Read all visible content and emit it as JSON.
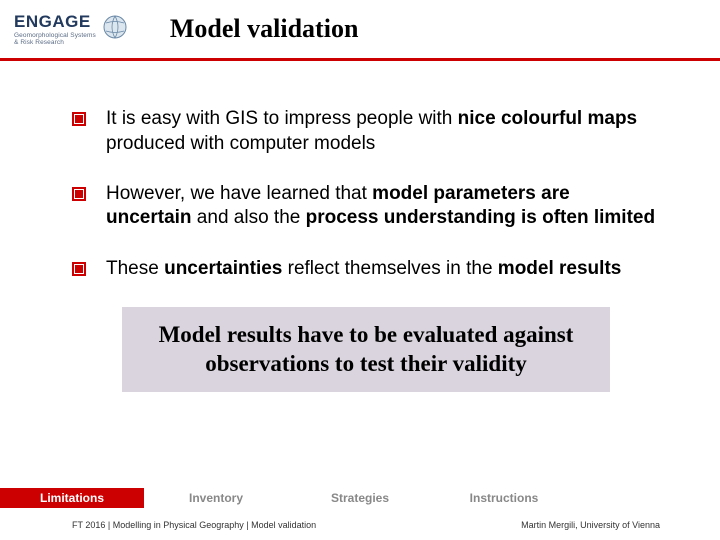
{
  "header": {
    "logo_primary": "ENGAGE",
    "logo_sub_line1": "Geomorphological Systems",
    "logo_sub_line2": "& Risk Research",
    "title": "Model validation",
    "rule_color": "#cc0000"
  },
  "bullets": [
    {
      "segments": [
        {
          "t": "It is easy with GIS to impress people with ",
          "b": false
        },
        {
          "t": "nice colourful maps",
          "b": true
        },
        {
          "t": " produced with computer models",
          "b": false
        }
      ]
    },
    {
      "segments": [
        {
          "t": "However, we have learned that ",
          "b": false
        },
        {
          "t": "model parameters are uncertain",
          "b": true
        },
        {
          "t": " and also the ",
          "b": false
        },
        {
          "t": "process understanding is often limited",
          "b": true
        }
      ]
    },
    {
      "segments": [
        {
          "t": "These ",
          "b": false
        },
        {
          "t": "uncertainties",
          "b": true
        },
        {
          "t": " reflect themselves in the ",
          "b": false
        },
        {
          "t": "model results",
          "b": true
        }
      ]
    }
  ],
  "highlight": "Model results have to be evaluated against observations to test their validity",
  "tabs": [
    {
      "label": "Limitations",
      "active": true
    },
    {
      "label": "Inventory",
      "active": false
    },
    {
      "label": "Strategies",
      "active": false
    },
    {
      "label": "Instructions",
      "active": false
    },
    {
      "label": "",
      "active": false
    }
  ],
  "footer": {
    "left": "FT 2016 | Modelling in Physical Geography | Model validation",
    "right": "Martin Mergili, University of Vienna"
  },
  "colors": {
    "accent": "#cc0000",
    "highlight_bg": "#d9d4dd",
    "tab_inactive_text": "#888888"
  }
}
